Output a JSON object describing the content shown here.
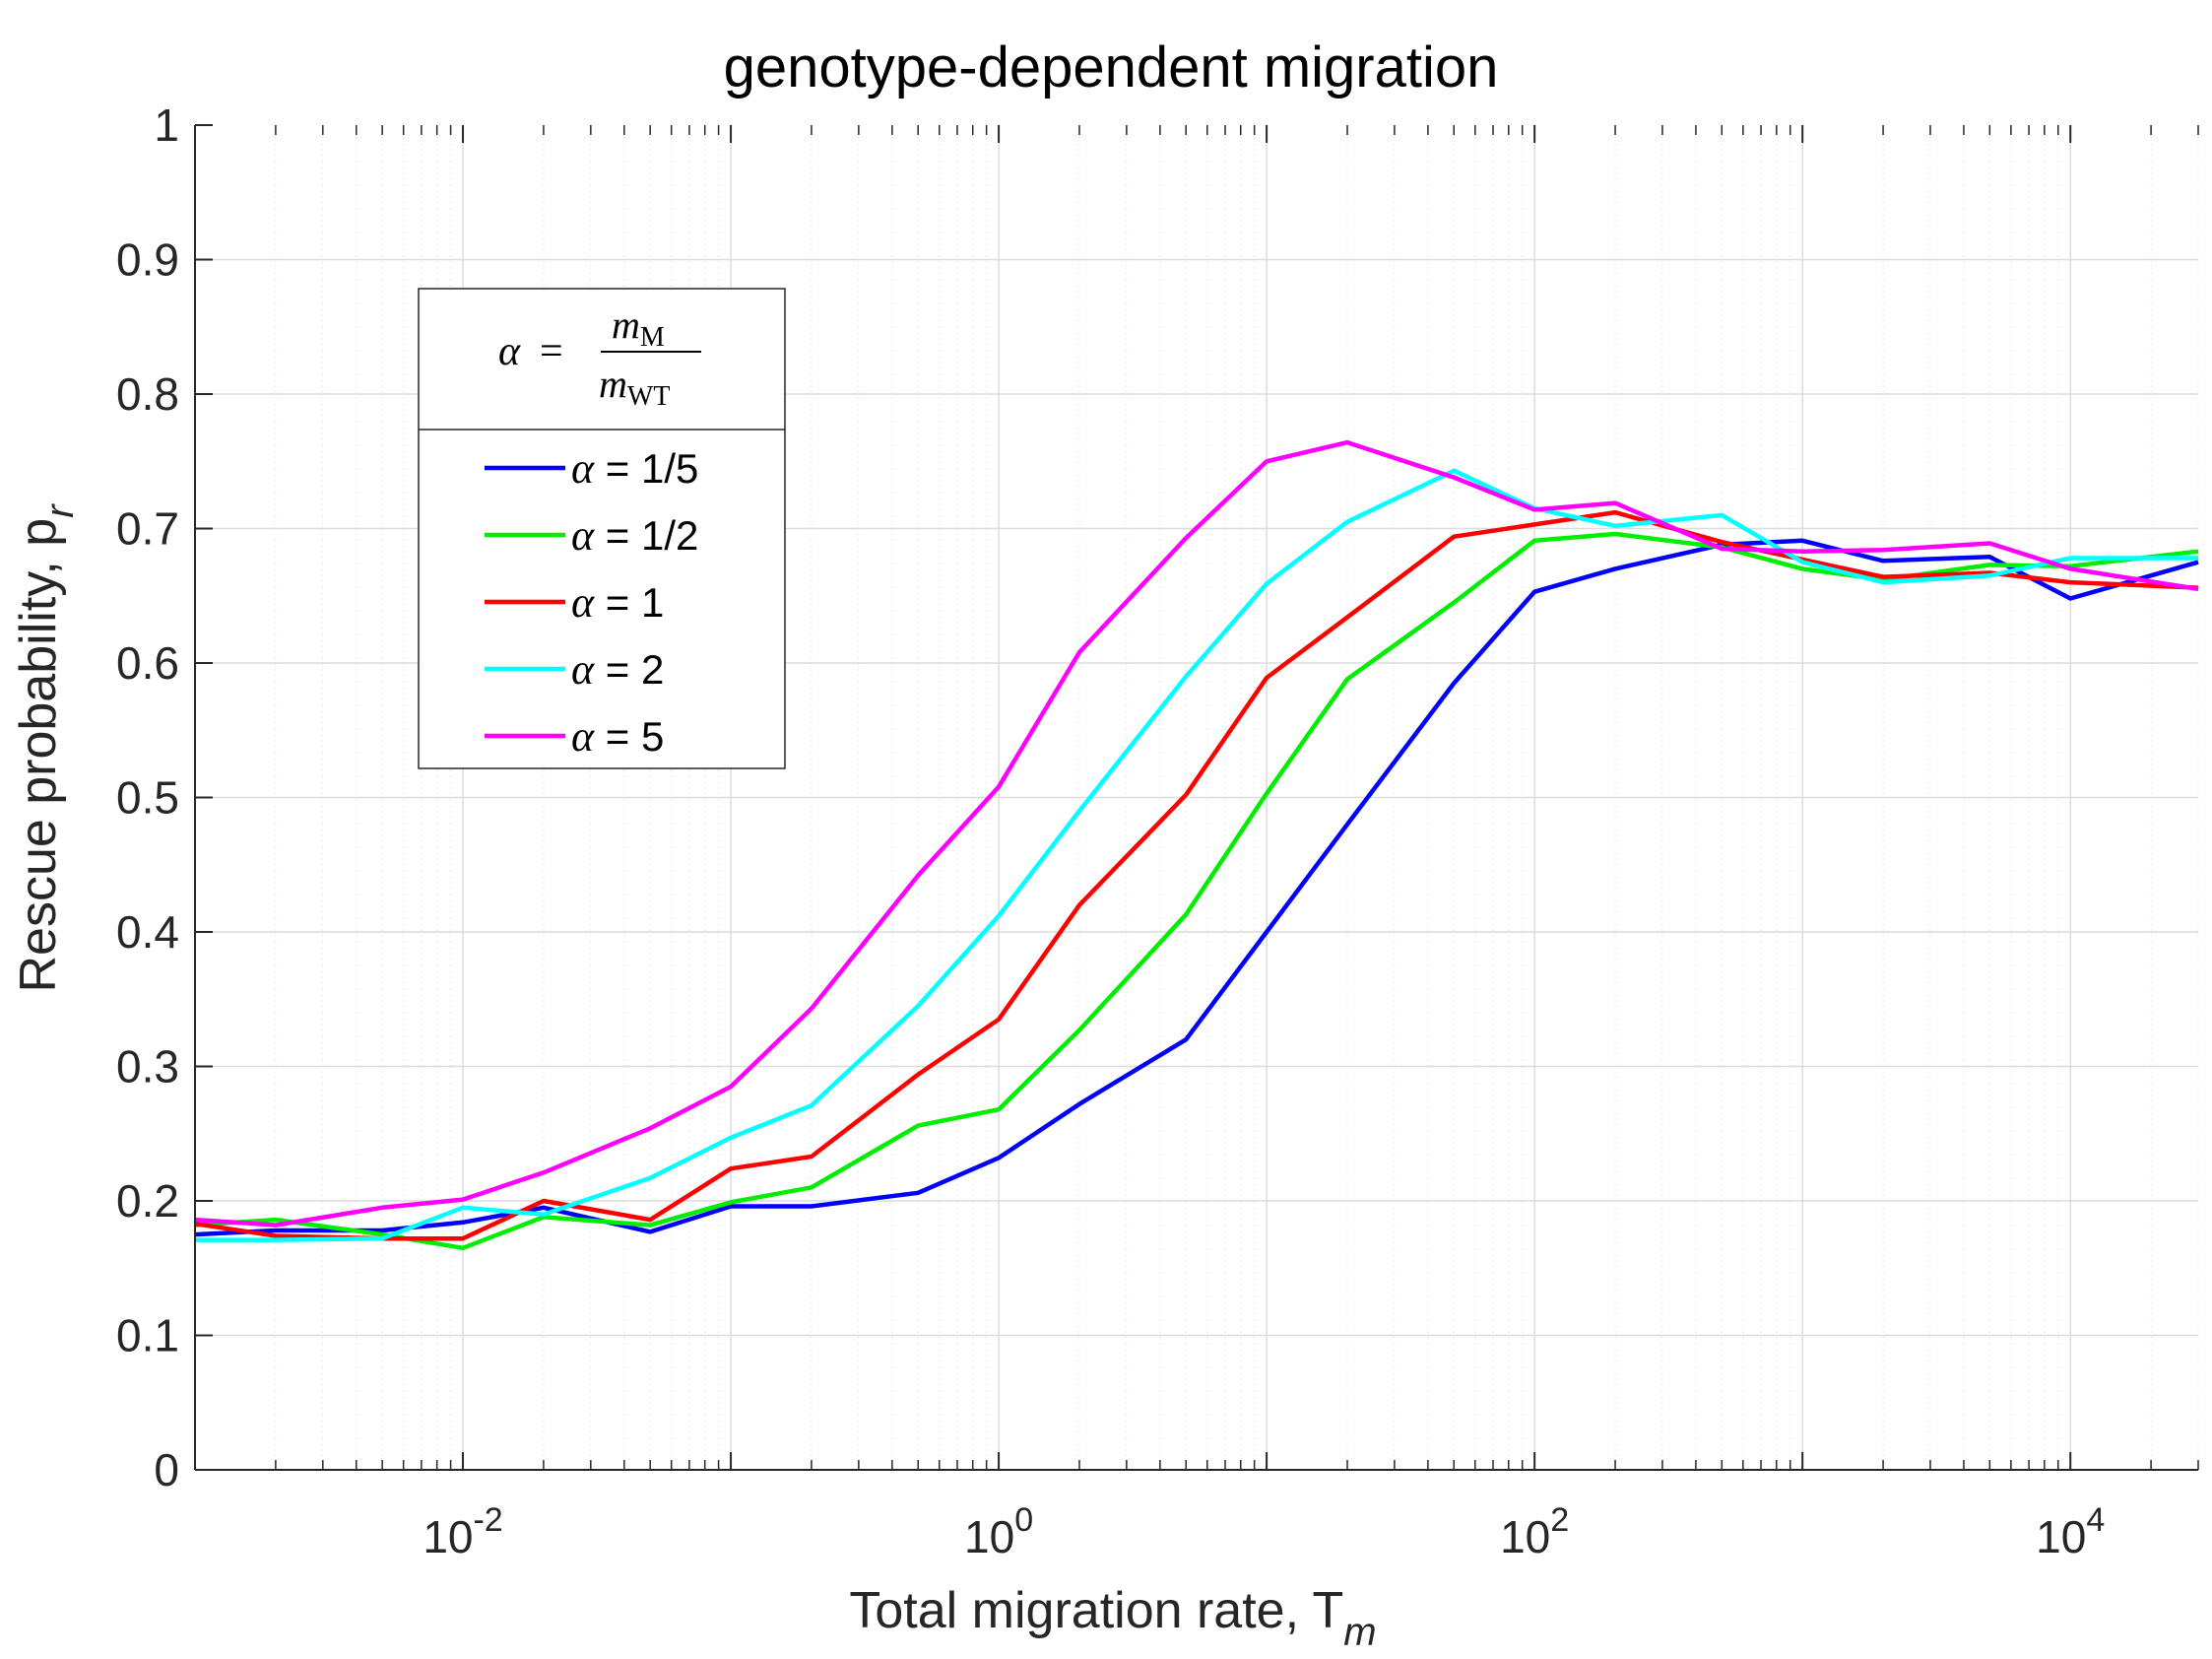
{
  "chart_data": {
    "type": "line",
    "title": "genotype-dependent migration",
    "xlabel": "Total migration rate, T",
    "xlabel_sub": "m",
    "ylabel": "Rescue probability, p",
    "ylabel_sub": "r",
    "xscale": "log",
    "xlim": [
      0.001,
      30000
    ],
    "ylim": [
      0,
      1
    ],
    "grid": true,
    "legend_placement": "upper-left",
    "xticks": [
      {
        "value": 0.01,
        "base": "10",
        "exp": "-2"
      },
      {
        "value": 1,
        "base": "10",
        "exp": "0"
      },
      {
        "value": 100,
        "base": "10",
        "exp": "2"
      },
      {
        "value": 10000,
        "base": "10",
        "exp": "4"
      }
    ],
    "yticks": [
      "0",
      "0.1",
      "0.2",
      "0.3",
      "0.4",
      "0.5",
      "0.6",
      "0.7",
      "0.8",
      "0.9",
      "1"
    ],
    "legend_header": {
      "lhs": "α",
      "eq": "=",
      "num_var": "m",
      "num_sub": "M",
      "den_var": "m",
      "den_sub": "WT"
    },
    "x": [
      0.001,
      0.002,
      0.005,
      0.01,
      0.02,
      0.05,
      0.1,
      0.2,
      0.5,
      1,
      2,
      5,
      10,
      20,
      50,
      100,
      200,
      500,
      1000,
      2000,
      5000,
      10000,
      30000
    ],
    "series": [
      {
        "name": "α = 1/5",
        "color": "#0000ff",
        "values": [
          0.175,
          0.178,
          0.178,
          0.184,
          0.195,
          0.177,
          0.196,
          0.196,
          0.206,
          0.232,
          0.272,
          0.32,
          0.4,
          0.48,
          0.585,
          0.653,
          0.67,
          0.688,
          0.691,
          0.676,
          0.679,
          0.648,
          0.675
        ]
      },
      {
        "name": "α = 1/2",
        "color": "#00ee00",
        "values": [
          0.182,
          0.186,
          0.175,
          0.165,
          0.188,
          0.182,
          0.199,
          0.21,
          0.256,
          0.268,
          0.327,
          0.413,
          0.503,
          0.588,
          0.645,
          0.691,
          0.696,
          0.686,
          0.67,
          0.662,
          0.673,
          0.672,
          0.683
        ]
      },
      {
        "name": "α = 1",
        "color": "#ff0000",
        "values": [
          0.183,
          0.174,
          0.172,
          0.172,
          0.2,
          0.186,
          0.224,
          0.233,
          0.294,
          0.335,
          0.42,
          0.502,
          0.589,
          0.634,
          0.694,
          0.703,
          0.712,
          0.69,
          0.677,
          0.664,
          0.667,
          0.66,
          0.656
        ]
      },
      {
        "name": "α = 2",
        "color": "#00ffff",
        "values": [
          0.171,
          0.171,
          0.172,
          0.195,
          0.19,
          0.217,
          0.247,
          0.271,
          0.345,
          0.412,
          0.49,
          0.59,
          0.659,
          0.705,
          0.743,
          0.715,
          0.702,
          0.71,
          0.675,
          0.66,
          0.665,
          0.678,
          0.678
        ]
      },
      {
        "name": "α = 5",
        "color": "#ff00ff",
        "values": [
          0.186,
          0.182,
          0.195,
          0.201,
          0.221,
          0.254,
          0.285,
          0.343,
          0.442,
          0.508,
          0.608,
          0.693,
          0.75,
          0.764,
          0.738,
          0.714,
          0.719,
          0.685,
          0.683,
          0.684,
          0.689,
          0.67,
          0.655
        ]
      }
    ]
  }
}
